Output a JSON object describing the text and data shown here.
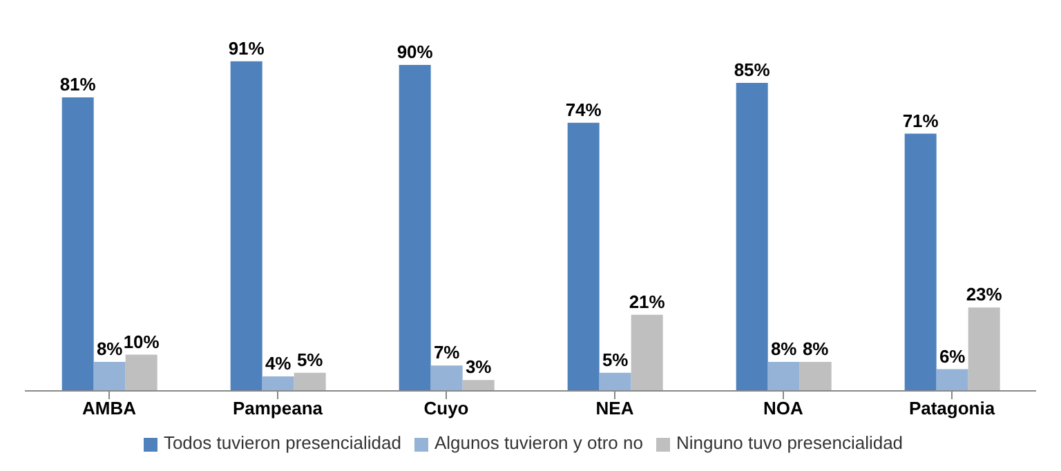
{
  "chart_data": {
    "type": "bar",
    "categories": [
      "AMBA",
      "Pampeana",
      "Cuyo",
      "NEA",
      "NOA",
      "Patagonia"
    ],
    "series": [
      {
        "name": "Todos tuvieron presencialidad",
        "color": "#4f81bd",
        "values": [
          81,
          91,
          90,
          74,
          85,
          71
        ],
        "value_labels": [
          "81%",
          "91%",
          "90%",
          "74%",
          "85%",
          "71%"
        ]
      },
      {
        "name": "Algunos tuvieron y otro no",
        "color": "#95b3d7",
        "values": [
          8,
          4,
          7,
          5,
          8,
          6
        ],
        "value_labels": [
          "8%",
          "4%",
          "7%",
          "5%",
          "8%",
          "6%"
        ]
      },
      {
        "name": "Ninguno tuvo presencialidad",
        "color": "#bfbfbf",
        "values": [
          10,
          5,
          3,
          21,
          8,
          23
        ],
        "value_labels": [
          "10%",
          "5%",
          "3%",
          "21%",
          "8%",
          "23%"
        ]
      }
    ],
    "legend": "bottom",
    "tick_labels": "x"
  }
}
